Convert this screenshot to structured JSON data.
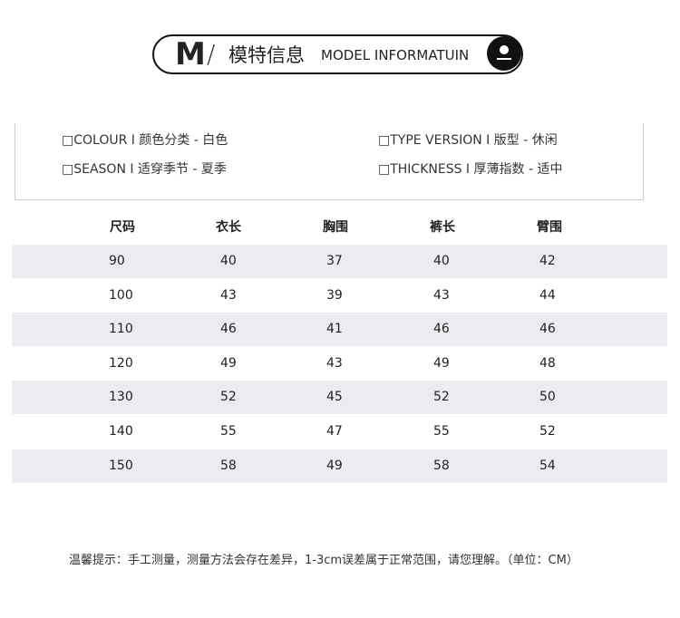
{
  "header": {
    "letter": "M",
    "slash": "/",
    "title": "模特信息",
    "subtitle": "MODEL INFORMATUIN"
  },
  "attributes": [
    "□COLOUR I 颜色分类 - 白色",
    "□TYPE VERSION I 版型 - 休闲",
    "□SEASON I 适穿季节 - 夏季",
    "□THICKNESS I 厚薄指数 - 适中"
  ],
  "table": {
    "headers": [
      "尺码",
      "衣长",
      "胸围",
      "裤长",
      "臂围"
    ],
    "rows": [
      [
        "90",
        "40",
        "37",
        "40",
        "42"
      ],
      [
        "100",
        "43",
        "39",
        "43",
        "44"
      ],
      [
        "110",
        "46",
        "41",
        "46",
        "46"
      ],
      [
        "120",
        "49",
        "43",
        "49",
        "48"
      ],
      [
        "130",
        "52",
        "45",
        "52",
        "50"
      ],
      [
        "140",
        "55",
        "47",
        "55",
        "52"
      ],
      [
        "150",
        "58",
        "49",
        "58",
        "54"
      ]
    ]
  },
  "footnote": "温馨提示：手工测量，测量方法会存在差异，1-3cm误差属于正常范围，请您理解。（单位：CM）"
}
